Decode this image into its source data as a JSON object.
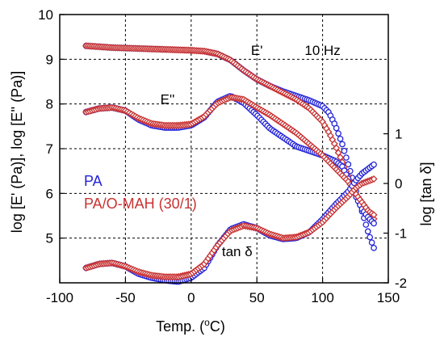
{
  "chart_data": {
    "type": "scatter",
    "xlabel": "Temp. (°C)",
    "xlabel_parts": {
      "pre": "Temp. (",
      "sup": "o",
      "post": "C)"
    },
    "ylabel_left": "log [E' (Pa)], log [E'' (Pa)]",
    "ylabel_right": "log [tan δ]",
    "xlim": [
      -100,
      150
    ],
    "ylim_left": [
      4,
      10
    ],
    "ylim_right": [
      -2,
      3.4
    ],
    "x_ticks": [
      "-100",
      "-50",
      "0",
      "50",
      "100",
      "150"
    ],
    "y_ticks_left": [
      "5",
      "6",
      "7",
      "8",
      "9",
      "10"
    ],
    "y_ticks_right": [
      "-2",
      "-1",
      "0",
      "1"
    ],
    "grid": true,
    "annotations": [
      {
        "text": "E'",
        "x": 50,
        "y": 9.1
      },
      {
        "text": "10 Hz",
        "x": 100,
        "y": 9.1
      },
      {
        "text": "E''",
        "x": -18,
        "y": 8.0
      },
      {
        "text": "tan δ",
        "x": 35,
        "y": 4.6
      }
    ],
    "legend": [
      {
        "name": "PA",
        "color": "#2323d8"
      },
      {
        "name": "PA/O-MAH (30/1)",
        "color": "#c83232"
      }
    ],
    "series": [
      {
        "name": "PA",
        "quantity": "E'",
        "axis": "left",
        "color": "#2323d8",
        "x": [
          -80,
          -70,
          -60,
          -50,
          -40,
          -30,
          -20,
          -10,
          0,
          10,
          20,
          30,
          40,
          50,
          60,
          70,
          80,
          90,
          100,
          105,
          110,
          115,
          120,
          125,
          130,
          135,
          140
        ],
        "y": [
          9.3,
          9.28,
          9.26,
          9.25,
          9.24,
          9.23,
          9.22,
          9.21,
          9.2,
          9.18,
          9.12,
          8.98,
          8.75,
          8.55,
          8.4,
          8.28,
          8.18,
          8.08,
          7.95,
          7.8,
          7.5,
          7.1,
          6.6,
          6.1,
          5.6,
          5.1,
          4.7
        ]
      },
      {
        "name": "PA/O-MAH (30/1)",
        "quantity": "E'",
        "axis": "left",
        "color": "#c83232",
        "x": [
          -80,
          -70,
          -60,
          -50,
          -40,
          -30,
          -20,
          -10,
          0,
          10,
          20,
          30,
          40,
          50,
          60,
          70,
          80,
          90,
          100,
          105,
          110,
          115,
          120,
          125,
          130,
          135,
          140
        ],
        "y": [
          9.3,
          9.28,
          9.26,
          9.25,
          9.24,
          9.23,
          9.22,
          9.21,
          9.2,
          9.18,
          9.12,
          8.98,
          8.75,
          8.55,
          8.4,
          8.25,
          8.1,
          7.9,
          7.6,
          7.35,
          7.05,
          6.7,
          6.35,
          6.0,
          5.75,
          5.55,
          5.4
        ]
      },
      {
        "name": "PA",
        "quantity": "E''",
        "axis": "left",
        "color": "#2323d8",
        "x": [
          -80,
          -70,
          -60,
          -50,
          -40,
          -30,
          -20,
          -10,
          0,
          10,
          20,
          30,
          40,
          50,
          60,
          70,
          80,
          90,
          100,
          110,
          115,
          120,
          125,
          130,
          135,
          140
        ],
        "y": [
          7.82,
          7.9,
          7.92,
          7.85,
          7.65,
          7.52,
          7.47,
          7.47,
          7.52,
          7.7,
          8.05,
          8.18,
          8.02,
          7.75,
          7.45,
          7.25,
          7.05,
          6.95,
          6.85,
          6.72,
          6.6,
          6.3,
          5.95,
          5.65,
          5.45,
          5.3
        ]
      },
      {
        "name": "PA/O-MAH (30/1)",
        "quantity": "E''",
        "axis": "left",
        "color": "#c83232",
        "x": [
          -80,
          -70,
          -60,
          -50,
          -40,
          -30,
          -20,
          -10,
          0,
          10,
          20,
          30,
          40,
          50,
          60,
          70,
          80,
          90,
          100,
          105,
          110,
          115,
          120,
          125,
          130,
          135,
          140
        ],
        "y": [
          7.82,
          7.9,
          7.92,
          7.85,
          7.68,
          7.56,
          7.52,
          7.52,
          7.55,
          7.72,
          8.02,
          8.15,
          8.1,
          7.92,
          7.75,
          7.55,
          7.35,
          7.1,
          6.85,
          6.7,
          6.55,
          6.4,
          6.25,
          6.0,
          5.8,
          5.6,
          5.5
        ]
      },
      {
        "name": "PA",
        "quantity": "tan δ",
        "axis": "right",
        "color": "#2323d8",
        "x": [
          -80,
          -70,
          -60,
          -50,
          -40,
          -30,
          -20,
          -10,
          0,
          10,
          20,
          30,
          40,
          50,
          60,
          70,
          80,
          90,
          100,
          110,
          120,
          125,
          130,
          135,
          140
        ],
        "y": [
          -1.7,
          -1.62,
          -1.6,
          -1.67,
          -1.82,
          -1.9,
          -1.95,
          -1.98,
          -1.9,
          -1.7,
          -1.25,
          -0.92,
          -0.82,
          -0.9,
          -1.05,
          -1.12,
          -1.1,
          -0.98,
          -0.72,
          -0.42,
          -0.15,
          0.05,
          0.2,
          0.3,
          0.4
        ]
      },
      {
        "name": "PA/O-MAH (30/1)",
        "quantity": "tan δ",
        "axis": "right",
        "color": "#c83232",
        "x": [
          -80,
          -70,
          -60,
          -50,
          -40,
          -30,
          -20,
          -10,
          0,
          10,
          20,
          30,
          40,
          50,
          60,
          70,
          80,
          90,
          100,
          110,
          120,
          125,
          130,
          135,
          140
        ],
        "y": [
          -1.7,
          -1.62,
          -1.6,
          -1.67,
          -1.78,
          -1.85,
          -1.88,
          -1.88,
          -1.82,
          -1.62,
          -1.25,
          -0.95,
          -0.85,
          -0.9,
          -1.02,
          -1.1,
          -1.08,
          -0.98,
          -0.78,
          -0.5,
          -0.25,
          -0.1,
          0.0,
          0.05,
          0.1
        ]
      }
    ]
  }
}
